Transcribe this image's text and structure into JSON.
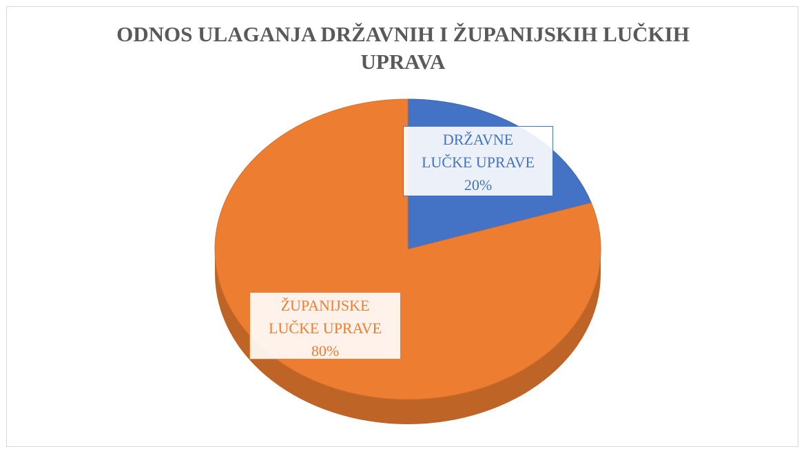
{
  "chart_data": {
    "type": "pie",
    "title": "ODNOS ULAGANJA DRŽAVNIH I ŽUPANIJSKIH LUČKIH UPRAVA",
    "categories": [
      "DRŽAVNE LUČKE UPRAVE",
      "ŽUPANIJSKE LUČKE UPRAVE"
    ],
    "values": [
      20,
      80
    ],
    "value_labels": [
      "20%",
      "80%"
    ],
    "colors": [
      "#4472c4",
      "#ed7d31"
    ]
  }
}
